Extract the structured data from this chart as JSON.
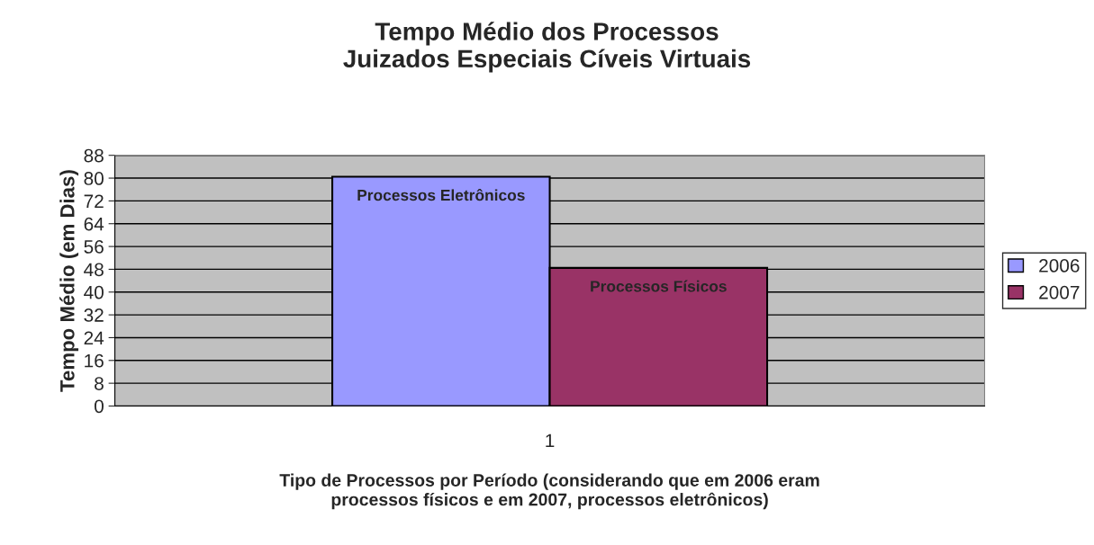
{
  "chart_data": {
    "type": "bar",
    "title": "Tempo Médio dos Processos\nJuizados Especiais Cíveis Virtuais",
    "xlabel": "Tipo de Processos por Período (considerando que em 2006 eram\nprocessos físicos e em 2007, processos eletrônicos)",
    "ylabel": "Tempo Médio (em Dias)",
    "categories": [
      "1"
    ],
    "series": [
      {
        "name": "2006",
        "color": "#9999ff",
        "values": [
          80.5
        ]
      },
      {
        "name": "2007",
        "color": "#993366",
        "values": [
          48.5
        ]
      }
    ],
    "annotations": [
      "Processos Eletrônicos",
      "Processos Físicos"
    ],
    "ylim": [
      0,
      88
    ],
    "yticks": [
      0,
      8,
      16,
      24,
      32,
      40,
      48,
      56,
      64,
      72,
      80,
      88
    ],
    "grid": "y",
    "legend": "right"
  }
}
